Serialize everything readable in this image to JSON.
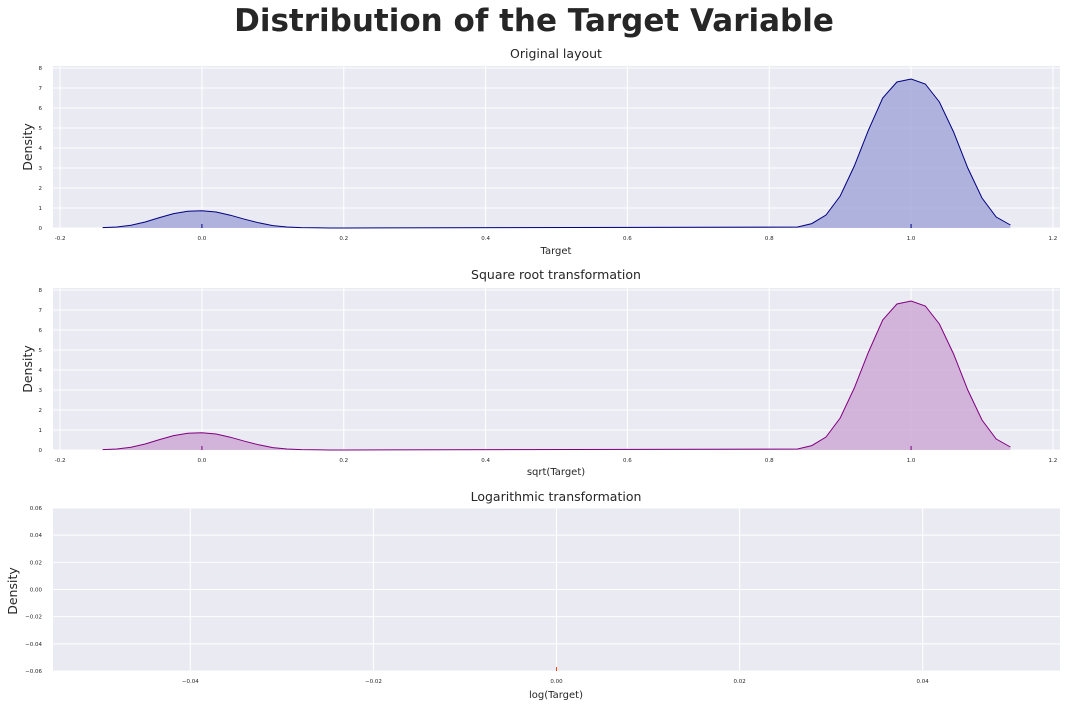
{
  "figure_title": "Distribution of the Target Variable",
  "chart_data": [
    {
      "type": "area",
      "title": "Original layout",
      "xlabel": "Target",
      "ylabel": "Density",
      "xlim": [
        -0.21,
        1.21
      ],
      "ylim": [
        0,
        8.1
      ],
      "xticks": [
        "-0.2",
        "0.0",
        "0.2",
        "0.4",
        "0.6",
        "0.8",
        "1.0",
        "1.2"
      ],
      "xtick_values": [
        -0.2,
        0.0,
        0.2,
        0.4,
        0.6,
        0.8,
        1.0,
        1.2
      ],
      "yticks": [
        "0",
        "1",
        "2",
        "3",
        "4",
        "5",
        "6",
        "7",
        "8"
      ],
      "ytick_values": [
        0,
        1,
        2,
        3,
        4,
        5,
        6,
        7,
        8
      ],
      "grid": true,
      "line_color": "#000080",
      "fill_color": "#9a9fd6",
      "series": [
        {
          "x": [
            -0.14,
            -0.12,
            -0.1,
            -0.08,
            -0.06,
            -0.04,
            -0.02,
            0.0,
            0.02,
            0.04,
            0.06,
            0.08,
            0.1,
            0.12,
            0.14,
            0.16,
            0.18,
            0.2,
            0.84,
            0.86,
            0.88,
            0.9,
            0.92,
            0.94,
            0.96,
            0.98,
            1.0,
            1.02,
            1.04,
            1.06,
            1.08,
            1.1,
            1.12,
            1.14
          ],
          "y": [
            0.02,
            0.05,
            0.14,
            0.3,
            0.52,
            0.72,
            0.84,
            0.86,
            0.8,
            0.64,
            0.44,
            0.26,
            0.12,
            0.05,
            0.02,
            0.01,
            0.0,
            0.0,
            0.05,
            0.22,
            0.65,
            1.6,
            3.1,
            4.9,
            6.5,
            7.3,
            7.45,
            7.2,
            6.3,
            4.8,
            3.0,
            1.5,
            0.55,
            0.15
          ]
        }
      ],
      "rug": [
        0.0,
        1.0
      ]
    },
    {
      "type": "area",
      "title": "Square root transformation",
      "xlabel": "sqrt(Target)",
      "ylabel": "Density",
      "xlim": [
        -0.21,
        1.21
      ],
      "ylim": [
        0,
        8.1
      ],
      "xticks": [
        "-0.2",
        "0.0",
        "0.2",
        "0.4",
        "0.6",
        "0.8",
        "1.0",
        "1.2"
      ],
      "xtick_values": [
        -0.2,
        0.0,
        0.2,
        0.4,
        0.6,
        0.8,
        1.0,
        1.2
      ],
      "yticks": [
        "0",
        "1",
        "2",
        "3",
        "4",
        "5",
        "6",
        "7",
        "8"
      ],
      "ytick_values": [
        0,
        1,
        2,
        3,
        4,
        5,
        6,
        7,
        8
      ],
      "grid": true,
      "line_color": "#800080",
      "fill_color": "#c9a0d0",
      "series": [
        {
          "x": [
            -0.14,
            -0.12,
            -0.1,
            -0.08,
            -0.06,
            -0.04,
            -0.02,
            0.0,
            0.02,
            0.04,
            0.06,
            0.08,
            0.1,
            0.12,
            0.14,
            0.16,
            0.18,
            0.2,
            0.84,
            0.86,
            0.88,
            0.9,
            0.92,
            0.94,
            0.96,
            0.98,
            1.0,
            1.02,
            1.04,
            1.06,
            1.08,
            1.1,
            1.12,
            1.14
          ],
          "y": [
            0.02,
            0.05,
            0.14,
            0.3,
            0.52,
            0.72,
            0.84,
            0.86,
            0.8,
            0.64,
            0.44,
            0.26,
            0.12,
            0.05,
            0.02,
            0.01,
            0.0,
            0.0,
            0.05,
            0.22,
            0.65,
            1.6,
            3.1,
            4.9,
            6.5,
            7.3,
            7.45,
            7.2,
            6.3,
            4.8,
            3.0,
            1.5,
            0.55,
            0.15
          ]
        }
      ],
      "rug": [
        0.0,
        1.0
      ]
    },
    {
      "type": "area",
      "title": "Logarithmic transformation",
      "xlabel": "log(Target)",
      "ylabel": "Density",
      "xlim": [
        -0.055,
        0.055
      ],
      "ylim": [
        -0.06,
        0.06
      ],
      "xticks": [
        "−0.04",
        "−0.02",
        "0.00",
        "0.02",
        "0.04"
      ],
      "xtick_values": [
        -0.04,
        -0.02,
        0.0,
        0.02,
        0.04
      ],
      "yticks": [
        "−0.06",
        "−0.04",
        "−0.02",
        "0.00",
        "0.02",
        "0.04",
        "0.06"
      ],
      "ytick_values": [
        -0.06,
        -0.04,
        -0.02,
        0.0,
        0.02,
        0.04,
        0.06
      ],
      "grid": true,
      "line_color": "#ff4500",
      "fill_color": "#ff4500",
      "series": [],
      "rug": [
        0.0
      ]
    }
  ]
}
